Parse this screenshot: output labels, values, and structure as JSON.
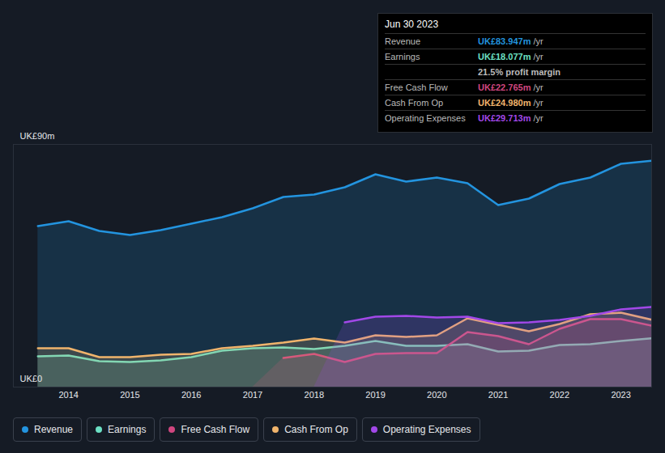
{
  "chart_data": {
    "type": "line",
    "x": [
      2013.5,
      2014,
      2014.5,
      2015,
      2015.5,
      2016,
      2016.5,
      2017,
      2017.5,
      2018,
      2018.5,
      2019,
      2019.5,
      2020,
      2020.5,
      2021,
      2021.5,
      2022,
      2022.5,
      2023,
      2023.5
    ],
    "xlim": [
      2013.1,
      2023.5
    ],
    "xticks": [
      2014,
      2015,
      2016,
      2017,
      2018,
      2019,
      2020,
      2021,
      2022,
      2023
    ],
    "ylim": [
      0,
      90
    ],
    "yticks": [
      {
        "value": 0,
        "label": "UK£0"
      },
      {
        "value": 90,
        "label": "UK£90m"
      }
    ],
    "grid": true,
    "legend": "bottom-left",
    "series": [
      {
        "name": "Revenue",
        "color": "#2394df",
        "values": [
          59.7,
          61.5,
          57.9,
          56.4,
          58.2,
          60.6,
          63,
          66.3,
          70.5,
          71.4,
          74.1,
          78.9,
          76.2,
          77.7,
          75.6,
          67.5,
          69.9,
          75.3,
          77.7,
          82.8,
          83.947
        ]
      },
      {
        "name": "Earnings",
        "color": "#6ce0c4",
        "values": [
          11.4,
          11.7,
          9.6,
          9.3,
          9.9,
          11.1,
          13.5,
          14.4,
          14.7,
          14.1,
          15.3,
          17.1,
          15.3,
          15.3,
          15.9,
          13.2,
          13.5,
          15.6,
          15.9,
          17.1,
          18.077
        ]
      },
      {
        "name": "Free Cash Flow",
        "color": "#d0467f",
        "values": [
          null,
          null,
          null,
          null,
          null,
          null,
          null,
          null,
          10.8,
          12.3,
          9.3,
          12.3,
          12.6,
          12.6,
          20.4,
          18.9,
          15.9,
          21.6,
          25.2,
          25.2,
          22.765
        ]
      },
      {
        "name": "Cash From Op",
        "color": "#f0b46c",
        "values": [
          14.4,
          14.4,
          11.1,
          11.1,
          12,
          12.3,
          14.4,
          15.3,
          16.5,
          18,
          16.5,
          19.2,
          18.6,
          19.2,
          25.5,
          23.1,
          20.7,
          23.4,
          27,
          27.6,
          24.98
        ]
      },
      {
        "name": "Operating Expenses",
        "color": "#a248e8",
        "values": [
          null,
          null,
          null,
          null,
          null,
          null,
          null,
          null,
          null,
          null,
          24,
          26.1,
          26.4,
          25.8,
          26.1,
          23.7,
          24,
          24.9,
          26.4,
          28.8,
          29.713
        ]
      }
    ],
    "annotations": {
      "title": "Jun 30 2023",
      "rows": [
        {
          "label": "Revenue",
          "value": "UK£83.947m",
          "unit": "/yr"
        },
        {
          "label": "Earnings",
          "value": "UK£18.077m",
          "unit": "/yr"
        },
        {
          "text": "21.5% profit margin"
        },
        {
          "label": "Free Cash Flow",
          "value": "UK£22.765m",
          "unit": "/yr"
        },
        {
          "label": "Cash From Op",
          "value": "UK£24.980m",
          "unit": "/yr"
        },
        {
          "label": "Operating Expenses",
          "value": "UK£29.713m",
          "unit": "/yr"
        }
      ]
    }
  }
}
